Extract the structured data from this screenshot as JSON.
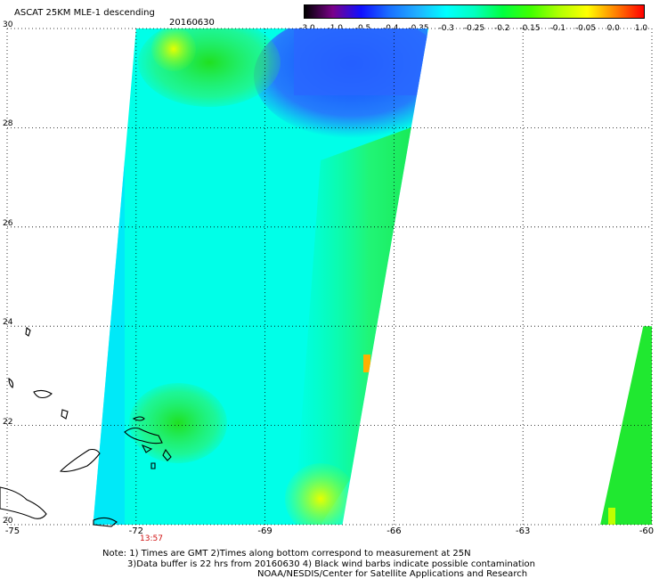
{
  "header": {
    "title": "ASCAT 25KM MLE-1 descending",
    "date": "20160630"
  },
  "colorbar": {
    "labels": [
      "-3.0",
      "-1.0",
      "-0.5",
      "-0.4",
      "-0.35",
      "-0.3",
      "-0.25",
      "-0.2",
      "-0.15",
      "-0.1",
      "-0.05",
      "0.0",
      "1.0"
    ],
    "colors": [
      "#000000",
      "#7a008a",
      "#1010ff",
      "#1a70ff",
      "#20b0ff",
      "#00ffff",
      "#00ffc0",
      "#00ff40",
      "#40ff00",
      "#b0ff00",
      "#ffff00",
      "#ff8000",
      "#ff0000"
    ]
  },
  "axes": {
    "latitude_labels": [
      "30",
      "28",
      "26",
      "24",
      "22",
      "20"
    ],
    "longitude_labels": [
      "-75",
      "-72",
      "-69",
      "-66",
      "-63",
      "-60"
    ],
    "lat_range": [
      20,
      30
    ],
    "lon_range": [
      -75,
      -60
    ]
  },
  "timestamps": [
    {
      "label": "13:57",
      "lon": -71.9
    }
  ],
  "notes": [
    "Note: 1) Times are GMT 2)Times along bottom correspond to measurement at 25N",
    "3)Data buffer is 22 hrs from 20160630 4) Black wind barbs indicate possible contamination",
    "NOAA/NESDIS/Center for Satellite Applications and Research"
  ],
  "swaths": [
    {
      "name": "main",
      "corners_lonlat": [
        [
          -72.0,
          30.0
        ],
        [
          -65.2,
          30.0
        ],
        [
          -67.2,
          20.0
        ],
        [
          -73.0,
          20.0
        ]
      ]
    },
    {
      "name": "east",
      "corners_lonlat": [
        [
          -60.2,
          24.0
        ],
        [
          -60.0,
          24.0
        ],
        [
          -60.0,
          20.0
        ],
        [
          -61.2,
          20.0
        ]
      ]
    }
  ]
}
